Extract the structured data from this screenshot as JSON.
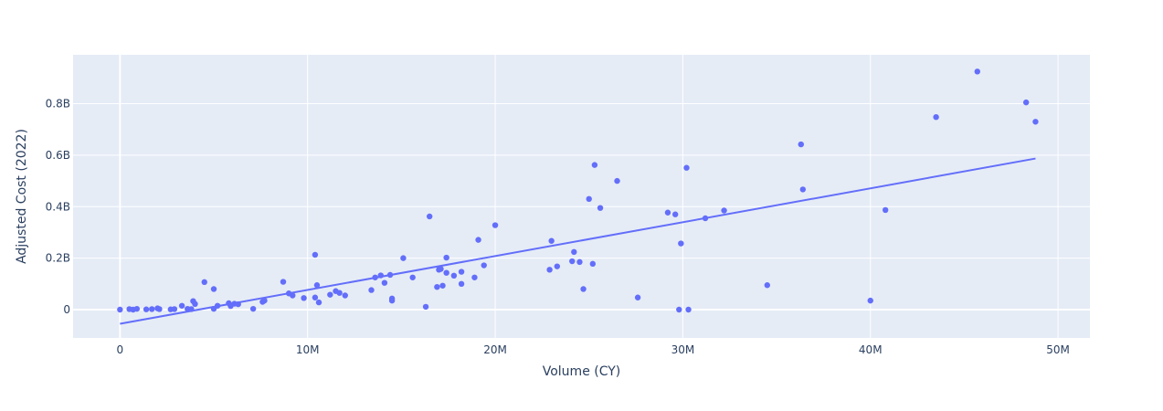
{
  "chart_data": {
    "type": "scatter",
    "xlabel": "Volume (CY)",
    "ylabel": "Adjusted Cost (2022)",
    "xlim": [
      -2500000,
      51700000
    ],
    "ylim": [
      -110000000,
      990000000
    ],
    "x_ticks": [
      {
        "value": 0,
        "label": "0"
      },
      {
        "value": 10000000,
        "label": "10M"
      },
      {
        "value": 20000000,
        "label": "20M"
      },
      {
        "value": 30000000,
        "label": "30M"
      },
      {
        "value": 40000000,
        "label": "40M"
      },
      {
        "value": 50000000,
        "label": "50M"
      }
    ],
    "y_ticks": [
      {
        "value": 0,
        "label": "0"
      },
      {
        "value": 200000000,
        "label": "0.2B"
      },
      {
        "value": 400000000,
        "label": "0.4B"
      },
      {
        "value": 600000000,
        "label": "0.6B"
      },
      {
        "value": 800000000,
        "label": "0.8B"
      }
    ],
    "grid": true,
    "legend": "none",
    "colors": {
      "points": "#636efa",
      "trendline": "#636efa",
      "plot_bg": "#e5ecf6",
      "grid": "#ffffff"
    },
    "series": [
      {
        "points": [
          [
            0,
            0
          ],
          [
            500000,
            2000000
          ],
          [
            700000,
            0
          ],
          [
            900000,
            3000000
          ],
          [
            1400000,
            1000000
          ],
          [
            1700000,
            2000000
          ],
          [
            2000000,
            5000000
          ],
          [
            2100000,
            2000000
          ],
          [
            2700000,
            1000000
          ],
          [
            2900000,
            2000000
          ],
          [
            3300000,
            15000000
          ],
          [
            3600000,
            3000000
          ],
          [
            3800000,
            2000000
          ],
          [
            3900000,
            33000000
          ],
          [
            4000000,
            22000000
          ],
          [
            4500000,
            107000000
          ],
          [
            5000000,
            80000000
          ],
          [
            5000000,
            3000000
          ],
          [
            5200000,
            15000000
          ],
          [
            5800000,
            25000000
          ],
          [
            5900000,
            14000000
          ],
          [
            6100000,
            23000000
          ],
          [
            6300000,
            21000000
          ],
          [
            7100000,
            3000000
          ],
          [
            7600000,
            30000000
          ],
          [
            7700000,
            35000000
          ],
          [
            8700000,
            108000000
          ],
          [
            9000000,
            63000000
          ],
          [
            9200000,
            55000000
          ],
          [
            9800000,
            45000000
          ],
          [
            10400000,
            213000000
          ],
          [
            10400000,
            47000000
          ],
          [
            10500000,
            95000000
          ],
          [
            10600000,
            28000000
          ],
          [
            11200000,
            58000000
          ],
          [
            11500000,
            72000000
          ],
          [
            11700000,
            65000000
          ],
          [
            12000000,
            55000000
          ],
          [
            13400000,
            76000000
          ],
          [
            13600000,
            125000000
          ],
          [
            13900000,
            133000000
          ],
          [
            14100000,
            104000000
          ],
          [
            14400000,
            135000000
          ],
          [
            14500000,
            35000000
          ],
          [
            14500000,
            43000000
          ],
          [
            15100000,
            200000000
          ],
          [
            15600000,
            125000000
          ],
          [
            16300000,
            11000000
          ],
          [
            16500000,
            362000000
          ],
          [
            16900000,
            88000000
          ],
          [
            17000000,
            155000000
          ],
          [
            17100000,
            158000000
          ],
          [
            17200000,
            93000000
          ],
          [
            17400000,
            202000000
          ],
          [
            17400000,
            143000000
          ],
          [
            17800000,
            132000000
          ],
          [
            18200000,
            100000000
          ],
          [
            18200000,
            147000000
          ],
          [
            18900000,
            125000000
          ],
          [
            19100000,
            271000000
          ],
          [
            19400000,
            172000000
          ],
          [
            20000000,
            328000000
          ],
          [
            22900000,
            155000000
          ],
          [
            23000000,
            267000000
          ],
          [
            23300000,
            168000000
          ],
          [
            24100000,
            188000000
          ],
          [
            24200000,
            224000000
          ],
          [
            24500000,
            185000000
          ],
          [
            24700000,
            80000000
          ],
          [
            25000000,
            430000000
          ],
          [
            25200000,
            178000000
          ],
          [
            25300000,
            562000000
          ],
          [
            25600000,
            395000000
          ],
          [
            26500000,
            500000000
          ],
          [
            27600000,
            47000000
          ],
          [
            29200000,
            377000000
          ],
          [
            29600000,
            370000000
          ],
          [
            29800000,
            0
          ],
          [
            29900000,
            257000000
          ],
          [
            30200000,
            551000000
          ],
          [
            30300000,
            0
          ],
          [
            31200000,
            355000000
          ],
          [
            32200000,
            385000000
          ],
          [
            34500000,
            95000000
          ],
          [
            36300000,
            642000000
          ],
          [
            36400000,
            467000000
          ],
          [
            40000000,
            35000000
          ],
          [
            40800000,
            387000000
          ],
          [
            43500000,
            748000000
          ],
          [
            45700000,
            925000000
          ],
          [
            48300000,
            805000000
          ],
          [
            48800000,
            730000000
          ]
        ]
      }
    ],
    "trendline": {
      "x": [
        0,
        48800000
      ],
      "y": [
        -55000000,
        587000000
      ]
    }
  }
}
